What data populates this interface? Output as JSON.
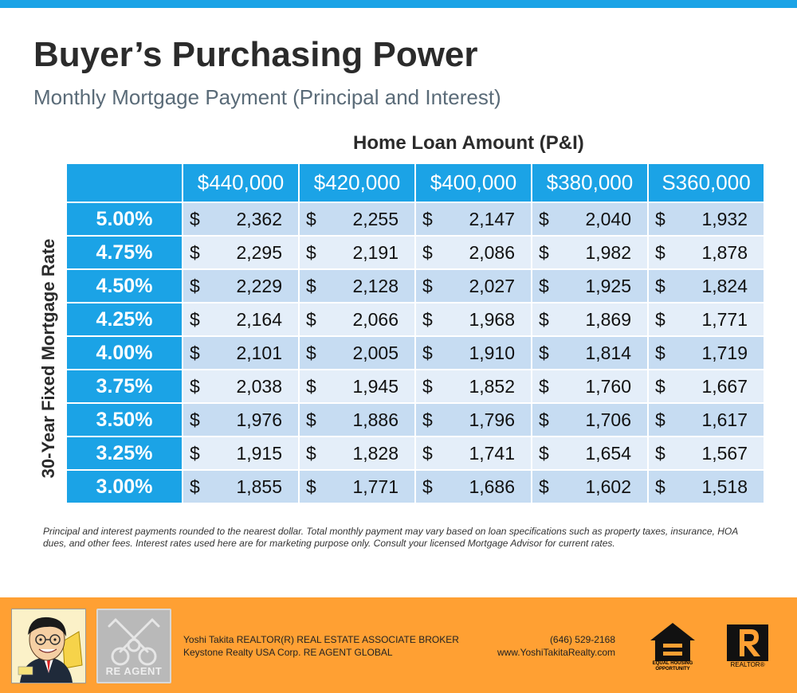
{
  "title": "Buyer’s Purchasing Power",
  "subtitle": "Monthly Mortgage Payment (Principal and Interest)",
  "column_caption": "Home Loan Amount (P&I)",
  "row_caption": "30-Year Fixed Mortgage Rate",
  "loan_amounts": [
    "$440,000",
    "$420,000",
    "$400,000",
    "$380,000",
    "S360,000"
  ],
  "currency_symbol": "$",
  "rows": [
    {
      "rate": "5.00%",
      "payments": [
        "2,362",
        "2,255",
        "2,147",
        "2,040",
        "1,932"
      ]
    },
    {
      "rate": "4.75%",
      "payments": [
        "2,295",
        "2,191",
        "2,086",
        "1,982",
        "1,878"
      ]
    },
    {
      "rate": "4.50%",
      "payments": [
        "2,229",
        "2,128",
        "2,027",
        "1,925",
        "1,824"
      ]
    },
    {
      "rate": "4.25%",
      "payments": [
        "2,164",
        "2,066",
        "1,968",
        "1,869",
        "1,771"
      ]
    },
    {
      "rate": "4.00%",
      "payments": [
        "2,101",
        "2,005",
        "1,910",
        "1,814",
        "1,719"
      ]
    },
    {
      "rate": "3.75%",
      "payments": [
        "2,038",
        "1,945",
        "1,852",
        "1,760",
        "1,667"
      ]
    },
    {
      "rate": "3.50%",
      "payments": [
        "1,976",
        "1,886",
        "1,796",
        "1,706",
        "1,617"
      ]
    },
    {
      "rate": "3.25%",
      "payments": [
        "1,915",
        "1,828",
        "1,741",
        "1,654",
        "1,567"
      ]
    },
    {
      "rate": "3.00%",
      "payments": [
        "1,855",
        "1,771",
        "1,686",
        "1,602",
        "1,518"
      ]
    }
  ],
  "footnote": "Principal and interest payments rounded to the nearest dollar. Total monthly payment may vary based on loan specifications such as property taxes, insurance, HOA dues, and other fees. Interest rates used here are for marketing purpose only. Consult your licensed Mortgage Advisor for current rates.",
  "footer": {
    "agent_line1": "Yoshi Takita REALTOR(R) REAL ESTATE ASSOCIATE BROKER",
    "agent_line2": "Keystone Realty USA Corp.  RE AGENT GLOBAL",
    "phone": "(646) 529-2168",
    "website": "www.YoshiTakitaRealty.com",
    "reagent_logo_text": "RE AGENT",
    "eho_text": "EQUAL HOUSING OPPORTUNITY",
    "realtor_logo_text": "REALTOR®"
  },
  "colors": {
    "accent": "#1ba3e6",
    "row_odd": "#c6dcf2",
    "row_even": "#e4eef9",
    "footer": "#ffa033",
    "title": "#2b2b2b",
    "subtitle": "#5a6b78"
  }
}
